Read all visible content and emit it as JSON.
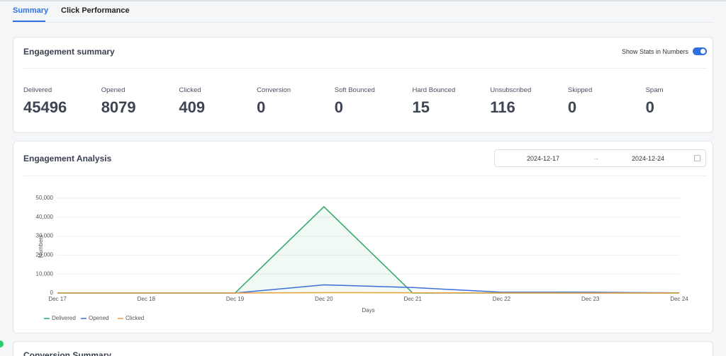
{
  "tabs": [
    "Summary",
    "Click Performance"
  ],
  "engagement_summary": {
    "title": "Engagement summary",
    "toggle_label": "Show Stats in Numbers",
    "stats": [
      {
        "label": "Delivered",
        "value": 45496
      },
      {
        "label": "Opened",
        "value": 8079
      },
      {
        "label": "Clicked",
        "value": 409
      },
      {
        "label": "Conversion",
        "value": 0
      },
      {
        "label": "Soft Bounced",
        "value": 0
      },
      {
        "label": "Hard Bounced",
        "value": 15
      },
      {
        "label": "Unsubscribed",
        "value": 116
      },
      {
        "label": "Skipped",
        "value": 0
      },
      {
        "label": "Spam",
        "value": 0
      }
    ]
  },
  "engagement_analysis": {
    "title": "Engagement Analysis",
    "date_start": "2024-12-17",
    "date_end": "2024-12-24"
  },
  "conversion_summary": {
    "title": "Conversion Summary"
  },
  "chart_data": {
    "type": "line",
    "x_label": "Days",
    "y_label": "Numbers",
    "categories": [
      "Dec 17",
      "Dec 18",
      "Dec 19",
      "Dec 20",
      "Dec 21",
      "Dec 22",
      "Dec 23",
      "Dec 24"
    ],
    "ylim": [
      0,
      50000
    ],
    "yticks": [
      0,
      {
        "value": 10000,
        "label": "10,000"
      },
      {
        "value": 20000,
        "label": "20,000"
      },
      {
        "value": 30000,
        "label": "30,000"
      },
      {
        "value": 40000,
        "label": "40,000"
      },
      {
        "value": 50000,
        "label": "50,000"
      }
    ],
    "grid": true,
    "series": [
      {
        "name": "Delivered",
        "color": "#2ea867",
        "values": [
          0,
          0,
          0,
          45496,
          0,
          0,
          0,
          0
        ]
      },
      {
        "name": "Opened",
        "color": "#3b6fd8",
        "values": [
          0,
          0,
          0,
          4300,
          2900,
          400,
          400,
          79
        ]
      },
      {
        "name": "Clicked",
        "color": "#e9a23b",
        "values": [
          0,
          0,
          0,
          200,
          150,
          30,
          20,
          9
        ]
      }
    ]
  }
}
